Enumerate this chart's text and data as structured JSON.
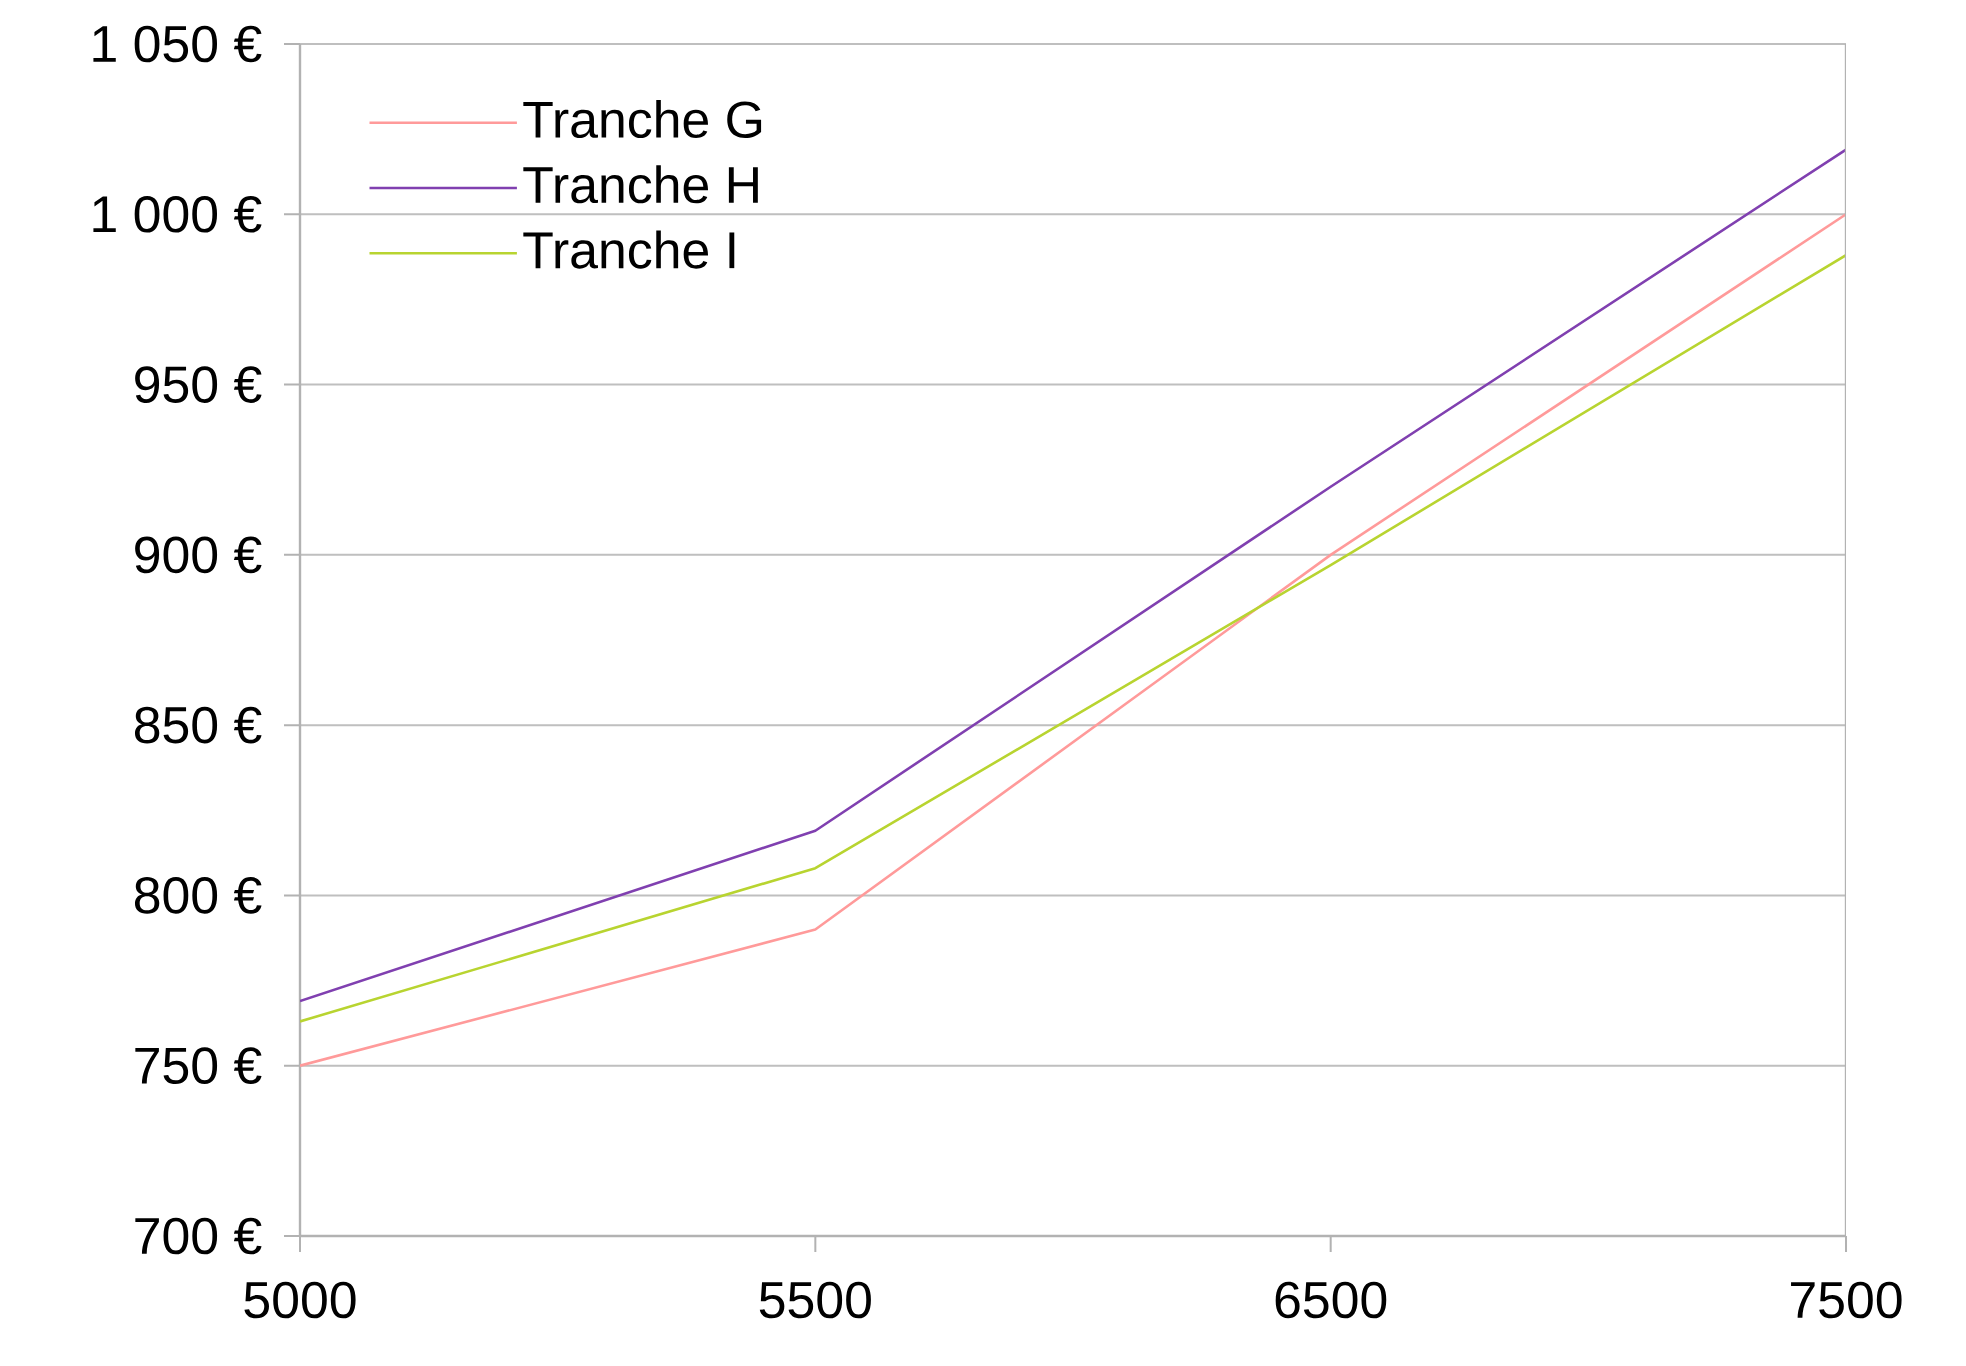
{
  "chart_data": {
    "type": "line",
    "categories": [
      "5000",
      "5500",
      "6500",
      "7500"
    ],
    "series": [
      {
        "name": "Tranche G",
        "color": "#ff9a9a",
        "values": [
          750,
          790,
          900,
          1000
        ]
      },
      {
        "name": "Tranche H",
        "color": "#8040b0",
        "values": [
          769,
          819,
          920,
          1019
        ]
      },
      {
        "name": "Tranche I",
        "color": "#b8d430",
        "values": [
          763,
          808,
          897,
          988
        ]
      }
    ],
    "ylim": [
      700,
      1050
    ],
    "yticks": [
      {
        "value": 700,
        "label": "700 €"
      },
      {
        "value": 750,
        "label": "750 €"
      },
      {
        "value": 800,
        "label": "800 €"
      },
      {
        "value": 850,
        "label": "850 €"
      },
      {
        "value": 900,
        "label": "900 €"
      },
      {
        "value": 950,
        "label": "950 €"
      },
      {
        "value": 1000,
        "label": "1 000 €"
      },
      {
        "value": 1050,
        "label": "1 050 €"
      }
    ],
    "grid": "y",
    "legend": "top left",
    "marker": "none",
    "line_style": "solid"
  }
}
